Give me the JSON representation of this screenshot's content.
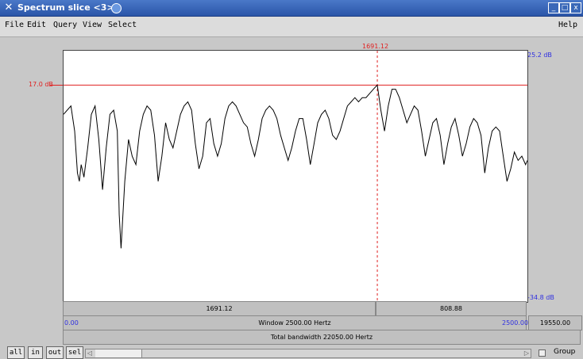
{
  "window": {
    "title": "Spectrum slice <3>",
    "min_label": "_",
    "max_label": "□",
    "close_label": "x"
  },
  "menu": {
    "items": [
      "File",
      "Edit",
      "Query",
      "View",
      "Select"
    ],
    "help": "Help"
  },
  "plot": {
    "top_db_label": "25.2 dB",
    "bottom_db_label": "-34.8 dB",
    "cursor_db_label": "17.0 dB",
    "cursor_freq_label": "1691.12",
    "axis_color": "#3030e0",
    "cursor_color": "#e02020"
  },
  "chart_data": {
    "type": "line",
    "xlim": [
      0,
      2500
    ],
    "ylim": [
      -34.8,
      25.2
    ],
    "cursor": {
      "x": 1691.12,
      "y": 17.0
    },
    "x": [
      0,
      40,
      60,
      75,
      85,
      95,
      110,
      130,
      150,
      170,
      190,
      210,
      230,
      250,
      270,
      290,
      300,
      310,
      330,
      350,
      370,
      390,
      410,
      430,
      450,
      470,
      490,
      510,
      530,
      550,
      570,
      590,
      610,
      630,
      650,
      670,
      690,
      710,
      730,
      750,
      770,
      790,
      810,
      830,
      850,
      870,
      890,
      910,
      930,
      950,
      970,
      990,
      1010,
      1030,
      1050,
      1070,
      1090,
      1110,
      1130,
      1150,
      1170,
      1190,
      1210,
      1230,
      1250,
      1270,
      1290,
      1310,
      1330,
      1350,
      1370,
      1390,
      1410,
      1430,
      1450,
      1470,
      1490,
      1510,
      1530,
      1550,
      1570,
      1590,
      1610,
      1630,
      1650,
      1670,
      1691,
      1710,
      1730,
      1750,
      1770,
      1790,
      1810,
      1830,
      1850,
      1870,
      1890,
      1910,
      1930,
      1950,
      1970,
      1990,
      2010,
      2030,
      2050,
      2070,
      2090,
      2110,
      2130,
      2150,
      2170,
      2190,
      2210,
      2230,
      2250,
      2270,
      2290,
      2310,
      2330,
      2350,
      2370,
      2390,
      2410,
      2430,
      2450,
      2470,
      2490,
      2500
    ],
    "y": [
      10,
      12,
      6,
      -4,
      -6,
      -2,
      -5,
      2,
      10,
      12,
      4,
      -8,
      2,
      10,
      11,
      6,
      -14,
      -22,
      -6,
      4,
      0,
      -2,
      6,
      10,
      12,
      11,
      5,
      -6,
      0,
      8,
      4,
      2,
      6,
      10,
      12,
      13,
      11,
      3,
      -3,
      0,
      8,
      9,
      3,
      0,
      3,
      9,
      12,
      13,
      12,
      10,
      8,
      7,
      3,
      0,
      4,
      9,
      11,
      12,
      11,
      9,
      5,
      2,
      -1,
      2,
      6,
      9,
      9,
      4,
      -2,
      3,
      8,
      10,
      11,
      9,
      5,
      4,
      6,
      9,
      12,
      13,
      14,
      13,
      14,
      14,
      15,
      16,
      17,
      11,
      6,
      12,
      16,
      16,
      14,
      11,
      8,
      10,
      12,
      11,
      6,
      0,
      4,
      8,
      9,
      5,
      -2,
      3,
      7,
      9,
      5,
      0,
      3,
      7,
      9,
      8,
      5,
      -4,
      2,
      6,
      7,
      6,
      0,
      -6,
      -3,
      1,
      -1,
      0,
      -2,
      -1
    ],
    "line_color": "#000000"
  },
  "info_bars": {
    "left_freq": "1691.12",
    "right_freq": "808.88",
    "window_start": "0.00",
    "window_label": "Window 2500.00 Hertz",
    "window_end": "2500.00",
    "side_value": "19550.00",
    "total_label": "Total bandwidth 22050.00 Hertz"
  },
  "bottom": {
    "buttons": [
      "all",
      "in",
      "out",
      "sel"
    ],
    "group_label": "Group"
  }
}
